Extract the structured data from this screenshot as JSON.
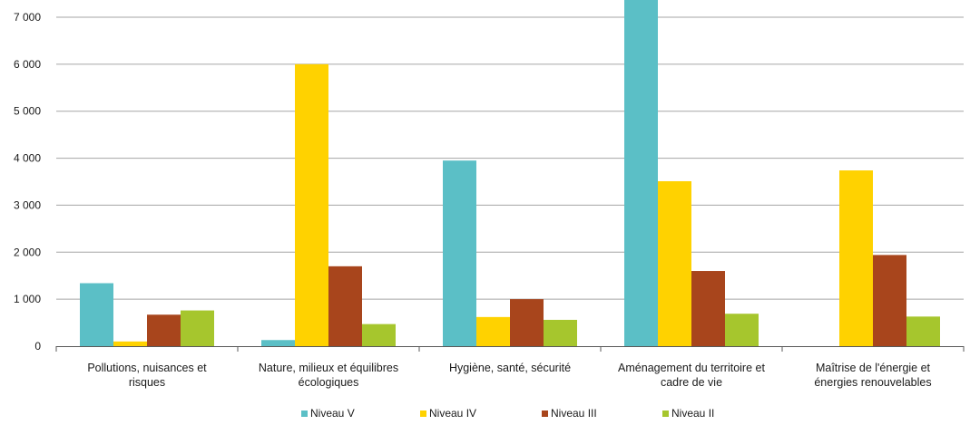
{
  "chart_data": {
    "type": "bar",
    "title": "",
    "xlabel": "",
    "ylabel": "",
    "ylim": [
      0,
      7400
    ],
    "yticks": [
      0,
      1000,
      2000,
      3000,
      4000,
      5000,
      6000,
      7000
    ],
    "ytick_labels": [
      "0",
      "1 000",
      "2 000",
      "3 000",
      "4 000",
      "5 000",
      "6 000",
      "7 000"
    ],
    "grid": true,
    "legend_position": "bottom",
    "categories": [
      [
        "Pollutions, nuisances et",
        "risques"
      ],
      [
        "Nature, milieux et équilibres",
        "écologiques"
      ],
      [
        "Hygiène, santé, sécurité"
      ],
      [
        "Aménagement du territoire et",
        "cadre de vie"
      ],
      [
        "Maîtrise de l'énergie et",
        "énergies renouvelables"
      ]
    ],
    "series": [
      {
        "name": "Niveau V",
        "color": "#5bbfc6",
        "values": [
          1340,
          130,
          3950,
          7400,
          0
        ]
      },
      {
        "name": "Niveau IV",
        "color": "#ffd200",
        "values": [
          100,
          6000,
          620,
          3510,
          3740
        ]
      },
      {
        "name": "Niveau III",
        "color": "#a8451c",
        "values": [
          670,
          1700,
          1000,
          1600,
          1940
        ]
      },
      {
        "name": "Niveau II",
        "color": "#a6c62d",
        "values": [
          760,
          470,
          560,
          690,
          630
        ]
      }
    ]
  }
}
